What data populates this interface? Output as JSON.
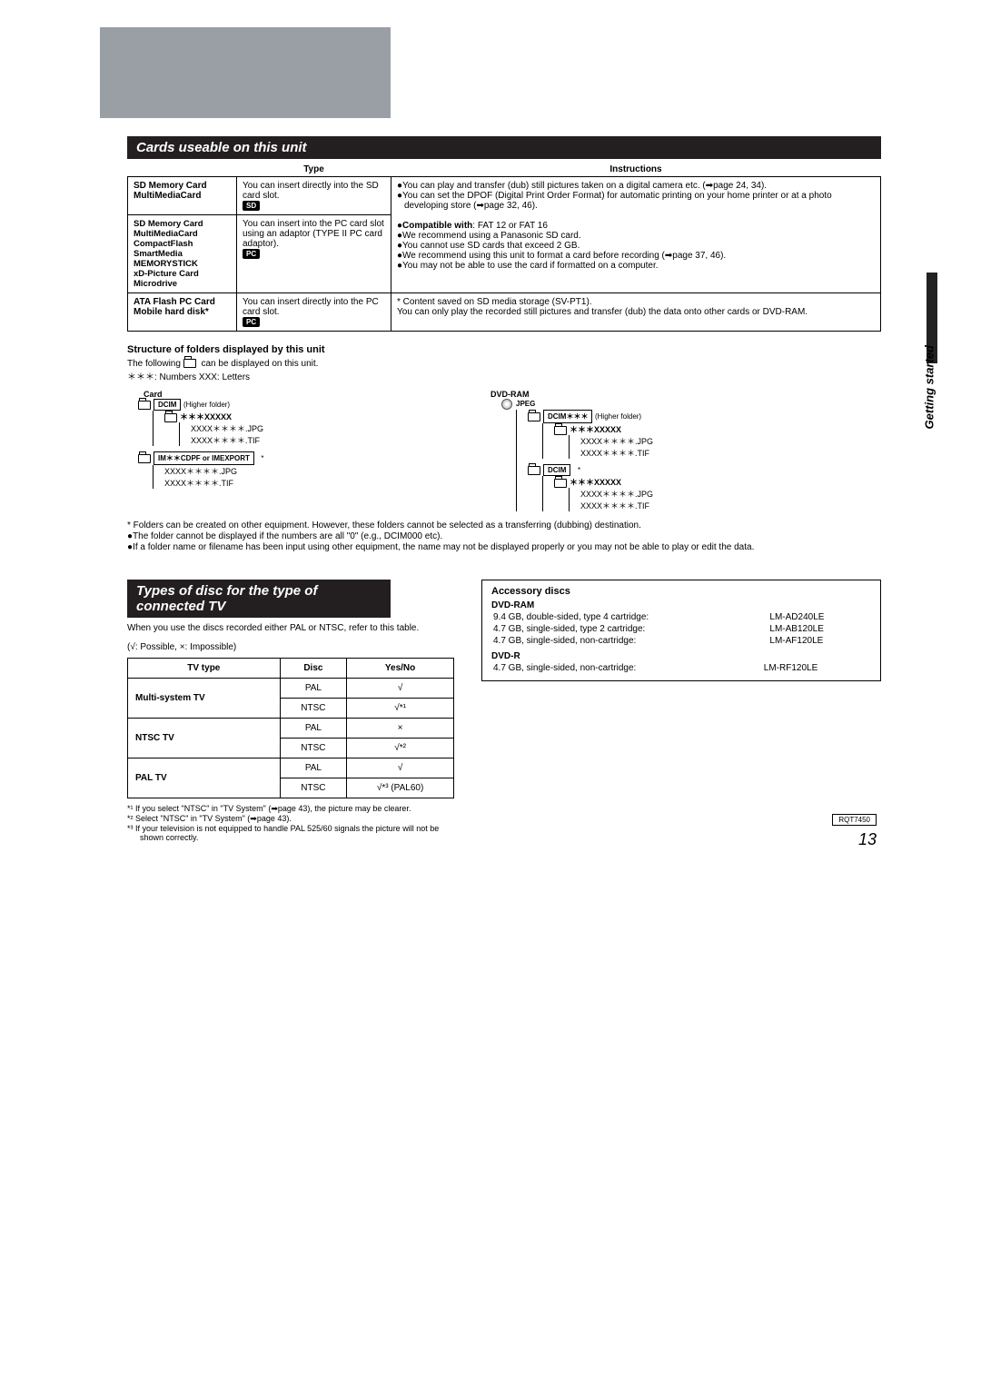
{
  "side_label": "Getting started",
  "ref_code": "RQT7450",
  "page_number": "13",
  "section1": {
    "title": "Cards useable on this unit"
  },
  "cards": {
    "hdr_type": "Type",
    "hdr_instr": "Instructions",
    "r1_name": "SD Memory Card\nMultiMediaCard",
    "r1_type": "You can insert directly into the SD card slot.",
    "r1_badge": "SD",
    "instr_shared": [
      "●You can play and transfer (dub) still pictures taken on a digital camera etc. (➡page 24, 34).",
      "●You can set the DPOF (Digital Print Order Format) for automatic printing on your home printer or at a photo developing store (➡page 32, 46).",
      "",
      "●Compatible with: FAT 12 or FAT 16",
      "●We recommend using a Panasonic SD card.",
      "●You cannot use SD cards that exceed 2 GB.",
      "●We recommend using this unit to format a card before recording (➡page 37, 46).",
      "●You may not be able to use the card if formatted on a computer."
    ],
    "r2_names": "SD Memory Card\nMultiMediaCard\nCompactFlash\nSmartMedia\nMEMORYSTICK\nxD-Picture Card\nMicrodrive",
    "r2_type": "You can insert into the PC card slot using an adaptor (TYPE II PC card adaptor).",
    "r2_badge": "PC",
    "r3_name": "ATA Flash PC Card\nMobile hard disk*",
    "r3_type": "You can insert directly into the PC card slot.",
    "r3_badge": "PC",
    "r3_instr": "* Content saved on SD media storage (SV-PT1).\nYou can only play the recorded still pictures and transfer (dub) the data onto other cards or DVD-RAM."
  },
  "folders": {
    "title": "Structure of folders displayed by this unit",
    "intro1": "The following ",
    "intro2": " can be displayed on this unit.",
    "legend": "＊＊＊: Numbers        XXX: Letters",
    "card_label": "Card",
    "dvd_label": "DVD-RAM",
    "dcim": "DCIM",
    "higher": "(Higher folder)",
    "xxxxx": "＊＊＊XXXXX",
    "jpg": "XXXX＊＊＊＊.JPG",
    "tif": "XXXX＊＊＊＊.TIF",
    "imfolder": "IM＊＊CDPF or IMEXPORT",
    "jpeg": "JPEG",
    "dcim_star": "DCIM＊＊＊",
    "dcim_plain": "DCIM"
  },
  "folder_notes": [
    "* Folders can be created on other equipment. However, these folders cannot be selected as a transferring (dubbing) destination.",
    "●The folder cannot be displayed if the numbers are all \"0\" (e.g., DCIM000 etc).",
    "●If a folder name or filename has been input using other equipment, the name may not be displayed properly or you may not be able to play or edit the data."
  ],
  "section2": {
    "title": "Types of disc for the type of connected TV"
  },
  "tv": {
    "intro": "When you use the discs recorded either PAL or NTSC, refer to this table.",
    "legend": "(√: Possible, ×: Impossible)",
    "h1": "TV type",
    "h2": "Disc",
    "h3": "Yes/No",
    "r1": "Multi-system TV",
    "r2": "NTSC TV",
    "r3": "PAL TV",
    "pal": "PAL",
    "ntsc": "NTSC",
    "yes": "√",
    "no": "×",
    "yes_s1": "√*¹",
    "yes_s2": "√*²",
    "yes_s3": "√*³ (PAL60)"
  },
  "tv_notes": [
    "*¹ If you select \"NTSC\" in \"TV System\" (➡page 43), the picture may be clearer.",
    "*² Select \"NTSC\" in \"TV System\" (➡page 43).",
    "*³ If your television is not equipped to handle PAL 525/60 signals the picture will not be shown correctly."
  ],
  "accessory": {
    "title": "Accessory discs",
    "dvdram": "DVD-RAM",
    "dvdr": "DVD-R",
    "rows_ram": [
      [
        "9.4 GB, double-sided, type 4 cartridge:",
        "LM-AD240LE"
      ],
      [
        "4.7 GB, single-sided, type 2 cartridge:",
        "LM-AB120LE"
      ],
      [
        "4.7 GB, single-sided, non-cartridge:",
        "LM-AF120LE"
      ]
    ],
    "rows_r": [
      [
        "4.7 GB, single-sided, non-cartridge:",
        "LM-RF120LE"
      ]
    ]
  }
}
